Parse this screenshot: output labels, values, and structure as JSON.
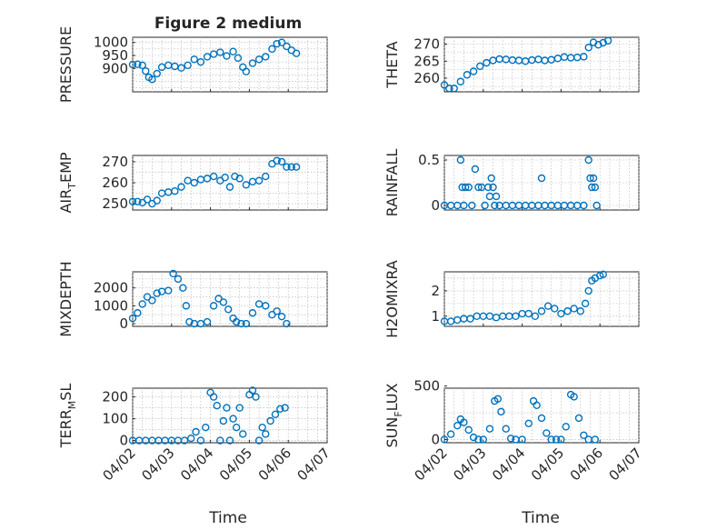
{
  "figure": {
    "title": "Figure 2 medium",
    "xlabel": "Time",
    "x_tick_labels": [
      "04/02",
      "04/03",
      "04/04",
      "04/05",
      "04/06",
      "04/07"
    ],
    "marker_color": "#0072BD"
  },
  "chart_data": [
    {
      "type": "scatter",
      "name": "pressure",
      "ylabel": "PRESSURE",
      "ylim": [
        810,
        1020
      ],
      "yticks": [
        900,
        950,
        1000
      ],
      "ytick_labels": [
        "900",
        "950",
        "1000"
      ],
      "xlim": [
        "04/02",
        "04/07"
      ],
      "grid": true,
      "points": [
        [
          "04/02 00:00",
          915
        ],
        [
          "04/02 03:00",
          916
        ],
        [
          "04/02 06:00",
          912
        ],
        [
          "04/02 08:00",
          890
        ],
        [
          "04/02 10:00",
          866
        ],
        [
          "04/02 12:00",
          858
        ],
        [
          "04/02 15:00",
          880
        ],
        [
          "04/02 18:00",
          905
        ],
        [
          "04/02 22:00",
          912
        ],
        [
          "04/03 02:00",
          908
        ],
        [
          "04/03 06:00",
          902
        ],
        [
          "04/03 10:00",
          912
        ],
        [
          "04/03 14:00",
          935
        ],
        [
          "04/03 18:00",
          925
        ],
        [
          "04/03 22:00",
          945
        ],
        [
          "04/04 02:00",
          955
        ],
        [
          "04/04 06:00",
          962
        ],
        [
          "04/04 10:00",
          948
        ],
        [
          "04/04 14:00",
          965
        ],
        [
          "04/04 17:00",
          940
        ],
        [
          "04/04 20:00",
          905
        ],
        [
          "04/04 22:00",
          888
        ],
        [
          "04/05 02:00",
          920
        ],
        [
          "04/05 06:00",
          935
        ],
        [
          "04/05 10:00",
          945
        ],
        [
          "04/05 14:00",
          975
        ],
        [
          "04/05 17:00",
          995
        ],
        [
          "04/05 20:00",
          1000
        ],
        [
          "04/05 23:00",
          985
        ],
        [
          "04/06 02:00",
          970
        ],
        [
          "04/06 05:00",
          958
        ]
      ]
    },
    {
      "type": "scatter",
      "name": "theta",
      "ylabel": "THETA",
      "ylim": [
        256,
        272
      ],
      "yticks": [
        260,
        265,
        270
      ],
      "ytick_labels": [
        "260",
        "265",
        "270"
      ],
      "xlim": [
        "04/02",
        "04/07"
      ],
      "grid": true,
      "points": [
        [
          "04/02 00:00",
          258
        ],
        [
          "04/02 03:00",
          257
        ],
        [
          "04/02 06:00",
          257
        ],
        [
          "04/02 10:00",
          259
        ],
        [
          "04/02 14:00",
          261
        ],
        [
          "04/02 18:00",
          262
        ],
        [
          "04/02 22:00",
          263.5
        ],
        [
          "04/03 02:00",
          264.5
        ],
        [
          "04/03 06:00",
          265.2
        ],
        [
          "04/03 10:00",
          265.6
        ],
        [
          "04/03 14:00",
          265.5
        ],
        [
          "04/03 18:00",
          265.3
        ],
        [
          "04/03 22:00",
          265.2
        ],
        [
          "04/04 02:00",
          265.0
        ],
        [
          "04/04 06:00",
          265.3
        ],
        [
          "04/04 10:00",
          265.5
        ],
        [
          "04/04 14:00",
          265.2
        ],
        [
          "04/04 18:00",
          265.4
        ],
        [
          "04/04 22:00",
          265.8
        ],
        [
          "04/05 02:00",
          266.2
        ],
        [
          "04/05 06:00",
          266.0
        ],
        [
          "04/05 10:00",
          266.1
        ],
        [
          "04/05 14:00",
          266.3
        ],
        [
          "04/05 17:00",
          269
        ],
        [
          "04/05 20:00",
          270.5
        ],
        [
          "04/05 23:00",
          269.8
        ],
        [
          "04/06 02:00",
          270.4
        ],
        [
          "04/06 05:00",
          271
        ]
      ]
    },
    {
      "type": "scatter",
      "name": "air_temp",
      "ylabel": "AIR_TEMP",
      "ylim": [
        247,
        273
      ],
      "yticks": [
        250,
        260,
        270
      ],
      "ytick_labels": [
        "250",
        "260",
        "270"
      ],
      "xlim": [
        "04/02",
        "04/07"
      ],
      "grid": true,
      "points": [
        [
          "04/02 00:00",
          251
        ],
        [
          "04/02 03:00",
          251
        ],
        [
          "04/02 06:00",
          250.5
        ],
        [
          "04/02 09:00",
          252
        ],
        [
          "04/02 12:00",
          250
        ],
        [
          "04/02 15:00",
          251.5
        ],
        [
          "04/02 18:00",
          255
        ],
        [
          "04/02 22:00",
          255.5
        ],
        [
          "04/03 02:00",
          256
        ],
        [
          "04/03 06:00",
          258
        ],
        [
          "04/03 10:00",
          261
        ],
        [
          "04/03 14:00",
          260
        ],
        [
          "04/03 18:00",
          261.5
        ],
        [
          "04/03 22:00",
          262
        ],
        [
          "04/04 02:00",
          263
        ],
        [
          "04/04 06:00",
          261
        ],
        [
          "04/04 09:00",
          262.5
        ],
        [
          "04/04 12:00",
          258
        ],
        [
          "04/04 15:00",
          263
        ],
        [
          "04/04 18:00",
          262
        ],
        [
          "04/04 22:00",
          259
        ],
        [
          "04/05 02:00",
          260.5
        ],
        [
          "04/05 06:00",
          261
        ],
        [
          "04/05 10:00",
          263
        ],
        [
          "04/05 14:00",
          269
        ],
        [
          "04/05 17:00",
          270.5
        ],
        [
          "04/05 20:00",
          270
        ],
        [
          "04/05 23:00",
          267.5
        ],
        [
          "04/06 02:00",
          267.5
        ],
        [
          "04/06 05:00",
          267.5
        ]
      ]
    },
    {
      "type": "scatter",
      "name": "rainfall",
      "ylabel": "RAINFALL",
      "ylim": [
        -0.05,
        0.55
      ],
      "yticks": [
        0,
        0.5
      ],
      "ytick_labels": [
        "0",
        "0.5"
      ],
      "xlim": [
        "04/02",
        "04/07"
      ],
      "grid": true,
      "points": [
        [
          "04/02 00:00",
          0
        ],
        [
          "04/02 04:00",
          0
        ],
        [
          "04/02 08:00",
          0
        ],
        [
          "04/02 10:00",
          0.5
        ],
        [
          "04/02 11:00",
          0.2
        ],
        [
          "04/02 12:00",
          0
        ],
        [
          "04/02 13:00",
          0.2
        ],
        [
          "04/02 15:00",
          0.2
        ],
        [
          "04/02 17:00",
          0
        ],
        [
          "04/02 19:00",
          0.4
        ],
        [
          "04/02 21:00",
          0.2
        ],
        [
          "04/02 23:00",
          0.2
        ],
        [
          "04/03 01:00",
          0
        ],
        [
          "04/03 03:00",
          0.2
        ],
        [
          "04/03 04:00",
          0.1
        ],
        [
          "04/03 05:00",
          0.3
        ],
        [
          "04/03 06:00",
          0.2
        ],
        [
          "04/03 07:00",
          0
        ],
        [
          "04/03 08:00",
          0.1
        ],
        [
          "04/03 10:00",
          0
        ],
        [
          "04/03 14:00",
          0
        ],
        [
          "04/03 18:00",
          0
        ],
        [
          "04/03 22:00",
          0
        ],
        [
          "04/04 02:00",
          0
        ],
        [
          "04/04 06:00",
          0
        ],
        [
          "04/04 10:00",
          0
        ],
        [
          "04/04 12:00",
          0.3
        ],
        [
          "04/04 14:00",
          0
        ],
        [
          "04/04 18:00",
          0
        ],
        [
          "04/04 22:00",
          0
        ],
        [
          "04/05 02:00",
          0
        ],
        [
          "04/05 06:00",
          0
        ],
        [
          "04/05 10:00",
          0
        ],
        [
          "04/05 14:00",
          0
        ],
        [
          "04/05 17:00",
          0.5
        ],
        [
          "04/05 18:00",
          0.3
        ],
        [
          "04/05 19:00",
          0.2
        ],
        [
          "04/05 20:00",
          0.3
        ],
        [
          "04/05 21:00",
          0.2
        ],
        [
          "04/05 22:00",
          0
        ]
      ]
    },
    {
      "type": "scatter",
      "name": "mixdepth",
      "ylabel": "MIXDEPTH",
      "ylim": [
        -150,
        2900
      ],
      "yticks": [
        0,
        1000,
        2000
      ],
      "ytick_labels": [
        "0",
        "1000",
        "2000"
      ],
      "xlim": [
        "04/02",
        "04/07"
      ],
      "grid": true,
      "points": [
        [
          "04/02 00:00",
          300
        ],
        [
          "04/02 03:00",
          600
        ],
        [
          "04/02 06:00",
          1100
        ],
        [
          "04/02 09:00",
          1500
        ],
        [
          "04/02 12:00",
          1300
        ],
        [
          "04/02 15:00",
          1700
        ],
        [
          "04/02 18:00",
          1800
        ],
        [
          "04/02 22:00",
          1850
        ],
        [
          "04/03 01:00",
          2800
        ],
        [
          "04/03 04:00",
          2500
        ],
        [
          "04/03 07:00",
          2000
        ],
        [
          "04/03 09:00",
          1000
        ],
        [
          "04/03 11:00",
          100
        ],
        [
          "04/03 14:00",
          0
        ],
        [
          "04/03 18:00",
          0
        ],
        [
          "04/03 22:00",
          100
        ],
        [
          "04/04 02:00",
          1000
        ],
        [
          "04/04 05:00",
          1400
        ],
        [
          "04/04 08:00",
          1200
        ],
        [
          "04/04 11:00",
          800
        ],
        [
          "04/04 14:00",
          300
        ],
        [
          "04/04 16:00",
          100
        ],
        [
          "04/04 19:00",
          0
        ],
        [
          "04/04 22:00",
          0
        ],
        [
          "04/05 02:00",
          600
        ],
        [
          "04/05 06:00",
          1100
        ],
        [
          "04/05 10:00",
          1000
        ],
        [
          "04/05 14:00",
          500
        ],
        [
          "04/05 17:00",
          700
        ],
        [
          "04/05 20:00",
          400
        ],
        [
          "04/05 23:00",
          0
        ]
      ]
    },
    {
      "type": "scatter",
      "name": "h2omixra",
      "ylabel": "H2OMIXRA",
      "ylim": [
        0.6,
        2.75
      ],
      "yticks": [
        1,
        2
      ],
      "ytick_labels": [
        "1",
        "2"
      ],
      "xlim": [
        "04/02",
        "04/07"
      ],
      "grid": true,
      "points": [
        [
          "04/02 00:00",
          0.8
        ],
        [
          "04/02 04:00",
          0.8
        ],
        [
          "04/02 08:00",
          0.85
        ],
        [
          "04/02 12:00",
          0.9
        ],
        [
          "04/02 16:00",
          0.9
        ],
        [
          "04/02 20:00",
          1.0
        ],
        [
          "04/03 00:00",
          1.0
        ],
        [
          "04/03 04:00",
          1.0
        ],
        [
          "04/03 08:00",
          0.95
        ],
        [
          "04/03 12:00",
          1.0
        ],
        [
          "04/03 16:00",
          1.0
        ],
        [
          "04/03 20:00",
          1.0
        ],
        [
          "04/04 00:00",
          1.1
        ],
        [
          "04/04 04:00",
          1.1
        ],
        [
          "04/04 08:00",
          1.0
        ],
        [
          "04/04 12:00",
          1.2
        ],
        [
          "04/04 16:00",
          1.4
        ],
        [
          "04/04 20:00",
          1.3
        ],
        [
          "04/05 00:00",
          1.1
        ],
        [
          "04/05 04:00",
          1.2
        ],
        [
          "04/05 08:00",
          1.3
        ],
        [
          "04/05 12:00",
          1.2
        ],
        [
          "04/05 15:00",
          1.5
        ],
        [
          "04/05 17:00",
          2.0
        ],
        [
          "04/05 19:00",
          2.4
        ],
        [
          "04/05 21:00",
          2.5
        ],
        [
          "04/06 00:00",
          2.6
        ],
        [
          "04/06 02:00",
          2.65
        ]
      ]
    },
    {
      "type": "scatter",
      "name": "terr_msl",
      "ylabel": "TERR_MSL",
      "ylim": [
        -10,
        240
      ],
      "yticks": [
        0,
        100,
        200
      ],
      "ytick_labels": [
        "0",
        "100",
        "200"
      ],
      "xlim": [
        "04/02",
        "04/07"
      ],
      "grid": true,
      "points": [
        [
          "04/02 00:00",
          0
        ],
        [
          "04/02 04:00",
          0
        ],
        [
          "04/02 08:00",
          0
        ],
        [
          "04/02 12:00",
          0
        ],
        [
          "04/02 16:00",
          0
        ],
        [
          "04/02 20:00",
          0
        ],
        [
          "04/03 00:00",
          0
        ],
        [
          "04/03 04:00",
          0
        ],
        [
          "04/03 08:00",
          0
        ],
        [
          "04/03 12:00",
          10
        ],
        [
          "04/03 15:00",
          40
        ],
        [
          "04/03 18:00",
          0
        ],
        [
          "04/03 21:00",
          60
        ],
        [
          "04/04 00:00",
          220
        ],
        [
          "04/04 02:00",
          200
        ],
        [
          "04/04 04:00",
          160
        ],
        [
          "04/04 06:00",
          0
        ],
        [
          "04/04 08:00",
          90
        ],
        [
          "04/04 10:00",
          150
        ],
        [
          "04/04 12:00",
          0
        ],
        [
          "04/04 14:00",
          100
        ],
        [
          "04/04 16:00",
          60
        ],
        [
          "04/04 18:00",
          150
        ],
        [
          "04/04 20:00",
          30
        ],
        [
          "04/05 00:00",
          210
        ],
        [
          "04/05 02:00",
          230
        ],
        [
          "04/05 04:00",
          200
        ],
        [
          "04/05 06:00",
          0
        ],
        [
          "04/05 08:00",
          60
        ],
        [
          "04/05 10:00",
          30
        ],
        [
          "04/05 13:00",
          90
        ],
        [
          "04/05 16:00",
          120
        ],
        [
          "04/05 19:00",
          145
        ],
        [
          "04/05 22:00",
          150
        ]
      ]
    },
    {
      "type": "scatter",
      "name": "sun_flux",
      "ylabel": "SUN_FLUX",
      "ylim": [
        -30,
        480
      ],
      "yticks": [
        0,
        500
      ],
      "ytick_labels": [
        "0",
        "500"
      ],
      "xlim": [
        "04/02",
        "04/07"
      ],
      "grid": true,
      "points": [
        [
          "04/02 00:00",
          0
        ],
        [
          "04/02 04:00",
          50
        ],
        [
          "04/02 08:00",
          130
        ],
        [
          "04/02 10:00",
          190
        ],
        [
          "04/02 12:00",
          160
        ],
        [
          "04/02 15:00",
          90
        ],
        [
          "04/02 18:00",
          20
        ],
        [
          "04/02 21:00",
          0
        ],
        [
          "04/03 00:00",
          0
        ],
        [
          "04/03 04:00",
          100
        ],
        [
          "04/03 07:00",
          360
        ],
        [
          "04/03 09:00",
          380
        ],
        [
          "04/03 11:00",
          260
        ],
        [
          "04/03 14:00",
          100
        ],
        [
          "04/03 17:00",
          10
        ],
        [
          "04/03 20:00",
          0
        ],
        [
          "04/04 00:00",
          0
        ],
        [
          "04/04 04:00",
          150
        ],
        [
          "04/04 07:00",
          360
        ],
        [
          "04/04 09:00",
          320
        ],
        [
          "04/04 12:00",
          200
        ],
        [
          "04/04 15:00",
          60
        ],
        [
          "04/04 18:00",
          0
        ],
        [
          "04/04 21:00",
          0
        ],
        [
          "04/05 00:00",
          0
        ],
        [
          "04/05 03:00",
          120
        ],
        [
          "04/05 06:00",
          420
        ],
        [
          "04/05 08:00",
          400
        ],
        [
          "04/05 11:00",
          200
        ],
        [
          "04/05 14:00",
          40
        ],
        [
          "04/05 17:00",
          0
        ],
        [
          "04/05 21:00",
          0
        ]
      ]
    }
  ]
}
